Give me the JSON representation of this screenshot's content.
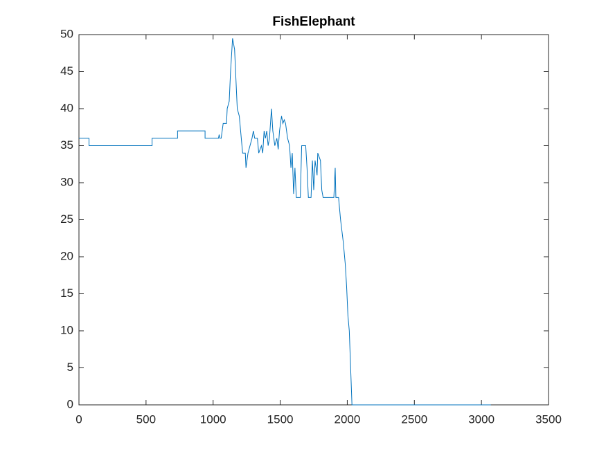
{
  "chart_data": {
    "type": "line",
    "title": "FishElephant",
    "x": [
      0,
      75,
      75,
      545,
      545,
      735,
      735,
      940,
      940,
      1040,
      1045,
      1050,
      1060,
      1075,
      1100,
      1105,
      1120,
      1130,
      1145,
      1160,
      1170,
      1180,
      1195,
      1210,
      1220,
      1240,
      1245,
      1260,
      1275,
      1290,
      1300,
      1310,
      1330,
      1340,
      1360,
      1370,
      1380,
      1390,
      1400,
      1410,
      1420,
      1435,
      1445,
      1460,
      1475,
      1485,
      1495,
      1510,
      1520,
      1530,
      1540,
      1555,
      1570,
      1580,
      1590,
      1600,
      1610,
      1620,
      1650,
      1660,
      1690,
      1700,
      1710,
      1730,
      1740,
      1750,
      1760,
      1775,
      1780,
      1800,
      1810,
      1820,
      1900,
      1905,
      1910,
      1915,
      1935,
      1950,
      1970,
      1985,
      1995,
      2005,
      2015,
      2025,
      2035,
      3070
    ],
    "values": [
      36,
      36,
      35,
      35,
      36,
      36,
      37,
      37,
      36,
      36,
      36.5,
      36,
      36,
      38,
      38,
      40,
      41,
      45,
      49.5,
      48,
      44,
      40,
      39,
      36,
      34,
      34,
      32,
      34,
      35,
      36,
      37,
      36,
      36,
      34,
      35,
      34,
      37,
      36,
      37,
      35,
      36,
      40,
      37,
      35,
      36,
      34.5,
      37,
      39,
      38,
      38.5,
      38,
      36,
      35,
      32,
      34,
      28.5,
      32,
      28,
      28,
      35,
      35,
      32,
      28,
      28,
      33,
      29,
      33,
      31,
      34,
      33,
      29,
      28,
      28,
      30,
      32,
      28,
      28,
      25,
      22,
      19,
      16,
      12,
      10,
      5,
      0,
      0
    ],
    "color": "#0072bd",
    "xlim": [
      0,
      3500
    ],
    "xticks": [
      0,
      500,
      1000,
      1500,
      2000,
      2500,
      3000,
      3500
    ],
    "ylim": [
      0,
      50
    ],
    "yticks": [
      0,
      5,
      10,
      15,
      20,
      25,
      30,
      35,
      40,
      45,
      50
    ]
  }
}
